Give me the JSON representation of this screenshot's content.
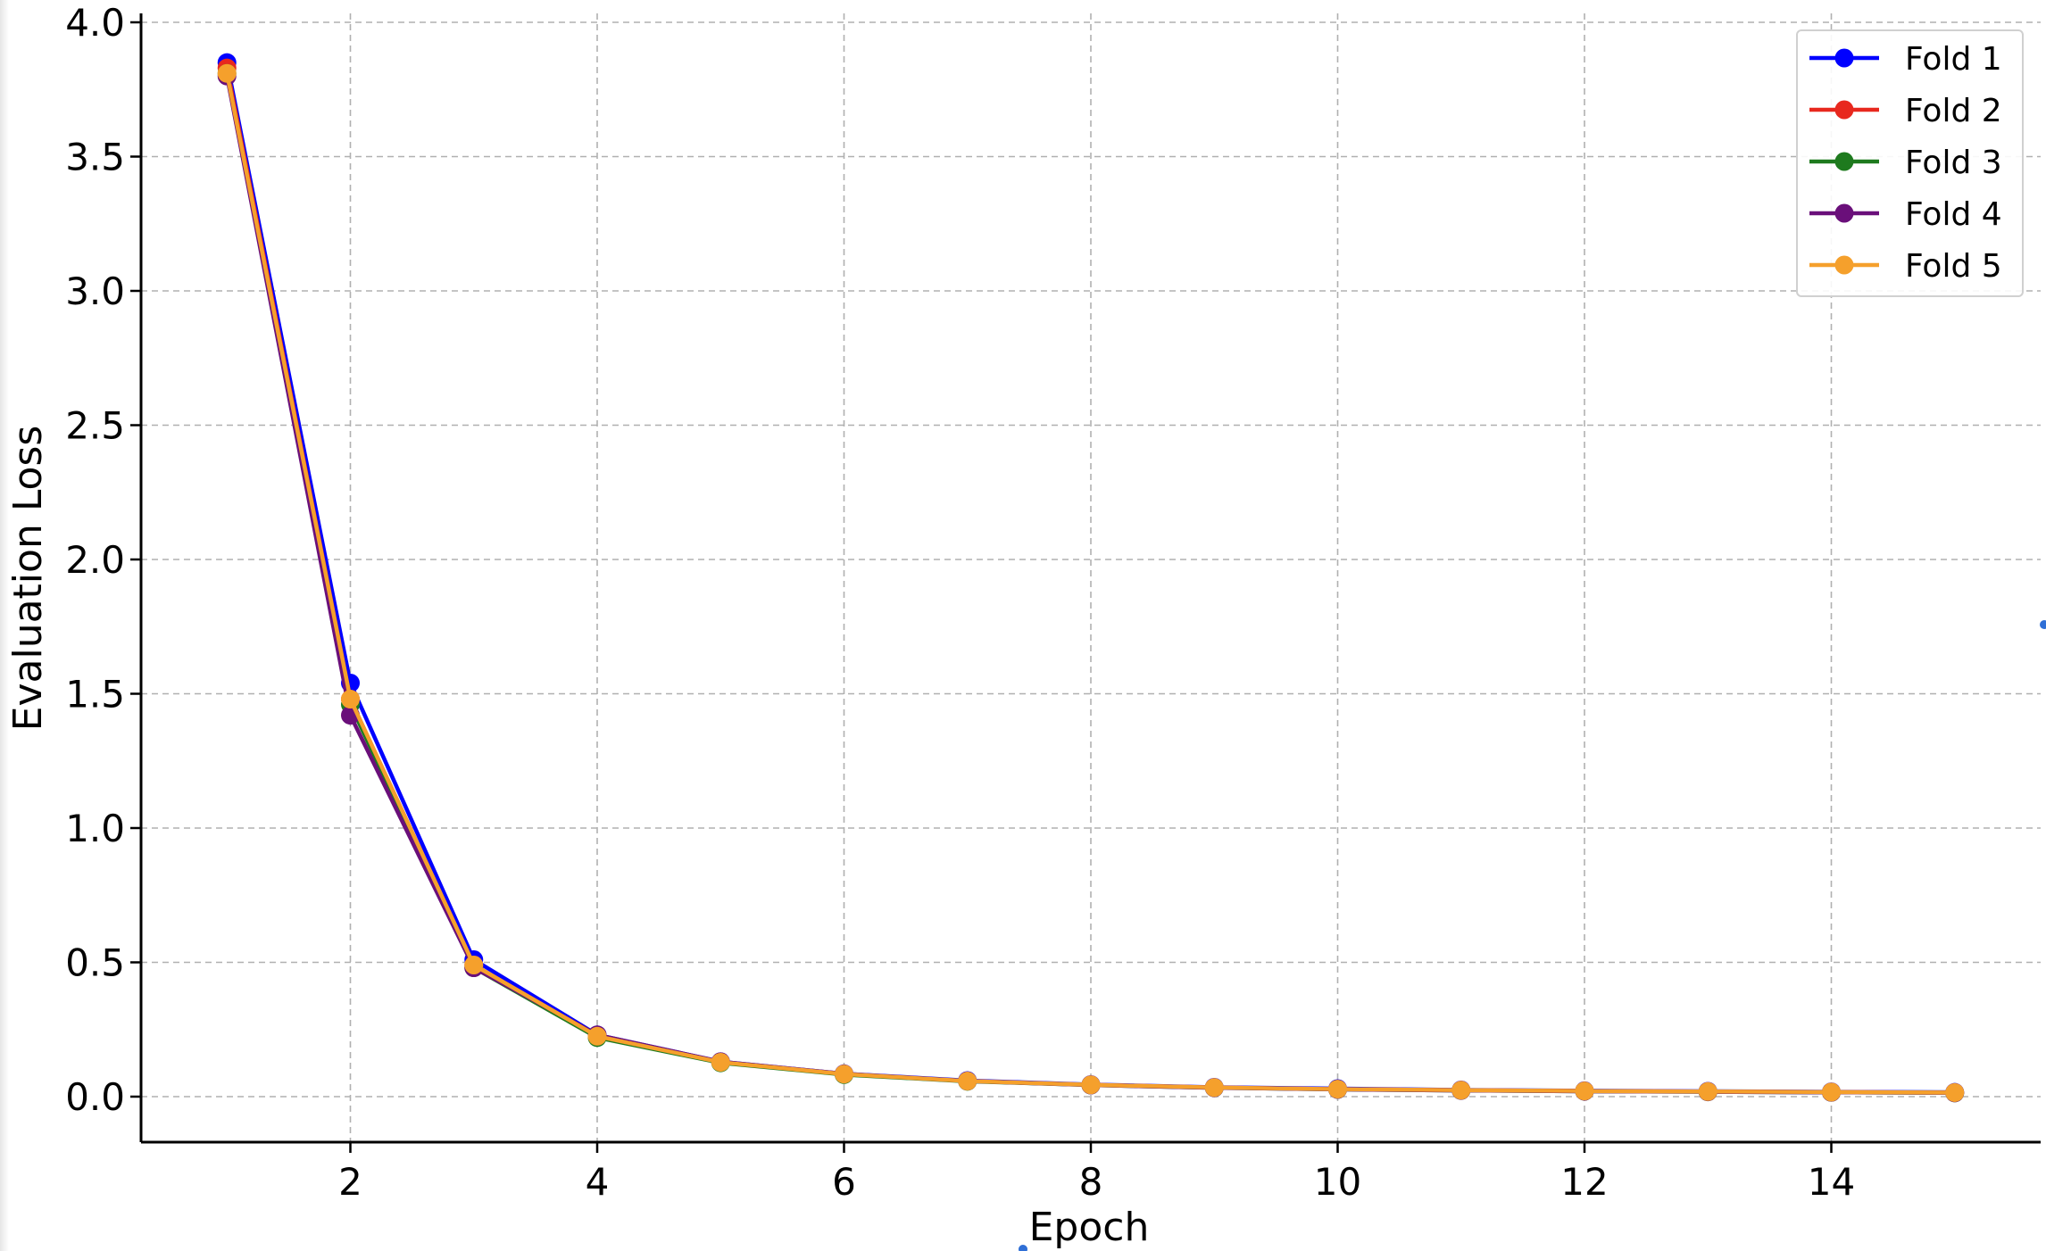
{
  "chart_data": {
    "type": "line",
    "title": "",
    "xlabel": "Epoch",
    "ylabel": "Evaluation Loss",
    "xlim": [
      0.3,
      15.7
    ],
    "ylim": [
      -0.17,
      4.0
    ],
    "x_ticks": [
      2,
      4,
      6,
      8,
      10,
      12,
      14
    ],
    "y_ticks": [
      0.0,
      0.5,
      1.0,
      1.5,
      2.0,
      2.5,
      3.0,
      3.5,
      4.0
    ],
    "x_tick_labels": [
      "2",
      "4",
      "6",
      "8",
      "10",
      "12",
      "14"
    ],
    "y_tick_labels": [
      "0.0",
      "0.5",
      "1.0",
      "1.5",
      "2.0",
      "2.5",
      "3.0",
      "3.5",
      "4.0"
    ],
    "grid": true,
    "legend_position": "top-right",
    "x": [
      1,
      2,
      3,
      4,
      5,
      6,
      7,
      8,
      9,
      10,
      11,
      12,
      13,
      14,
      15
    ],
    "series": [
      {
        "name": "Fold 1",
        "color": "#0000ff",
        "values": [
          3.85,
          1.54,
          0.51,
          0.23,
          0.13,
          0.085,
          0.06,
          0.045,
          0.035,
          0.03,
          0.025,
          0.022,
          0.02,
          0.018,
          0.016
        ]
      },
      {
        "name": "Fold 2",
        "color": "#e8281e",
        "values": [
          3.83,
          1.48,
          0.49,
          0.225,
          0.128,
          0.083,
          0.058,
          0.044,
          0.034,
          0.028,
          0.024,
          0.021,
          0.019,
          0.017,
          0.015
        ]
      },
      {
        "name": "Fold 3",
        "color": "#1e7a1e",
        "values": [
          3.81,
          1.46,
          0.48,
          0.22,
          0.126,
          0.082,
          0.057,
          0.043,
          0.033,
          0.027,
          0.023,
          0.02,
          0.018,
          0.016,
          0.014
        ]
      },
      {
        "name": "Fold 4",
        "color": "#6a0f7a",
        "values": [
          3.8,
          1.42,
          0.48,
          0.23,
          0.13,
          0.085,
          0.058,
          0.043,
          0.033,
          0.027,
          0.023,
          0.02,
          0.018,
          0.016,
          0.014
        ]
      },
      {
        "name": "Fold 5",
        "color": "#f5a02c",
        "values": [
          3.81,
          1.48,
          0.49,
          0.225,
          0.128,
          0.084,
          0.058,
          0.044,
          0.034,
          0.028,
          0.024,
          0.021,
          0.019,
          0.017,
          0.015
        ]
      }
    ]
  }
}
